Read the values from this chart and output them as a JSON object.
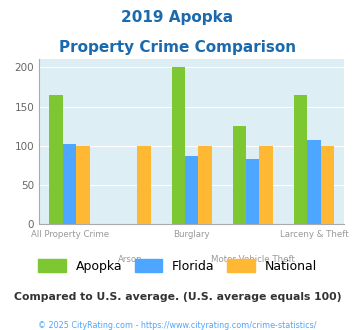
{
  "title_line1": "2019 Apopka",
  "title_line2": "Property Crime Comparison",
  "categories": [
    "All Property Crime",
    "Arson",
    "Burglary",
    "Motor Vehicle Theft",
    "Larceny & Theft"
  ],
  "apopka": [
    165,
    0,
    200,
    125,
    165
  ],
  "florida": [
    102,
    0,
    87,
    83,
    107
  ],
  "national": [
    100,
    100,
    100,
    100,
    100
  ],
  "colors": {
    "apopka": "#7dc832",
    "florida": "#4da6ff",
    "national": "#ffb833"
  },
  "ylim": [
    0,
    210
  ],
  "yticks": [
    0,
    50,
    100,
    150,
    200
  ],
  "bg_color": "#ddeef5",
  "title_color": "#1a6aad",
  "xlabel_color": "#999999",
  "footer_note": "Compared to U.S. average. (U.S. average equals 100)",
  "copyright": "© 2025 CityRating.com - https://www.cityrating.com/crime-statistics/",
  "footer_color": "#333333",
  "copyright_color": "#4da6ff"
}
